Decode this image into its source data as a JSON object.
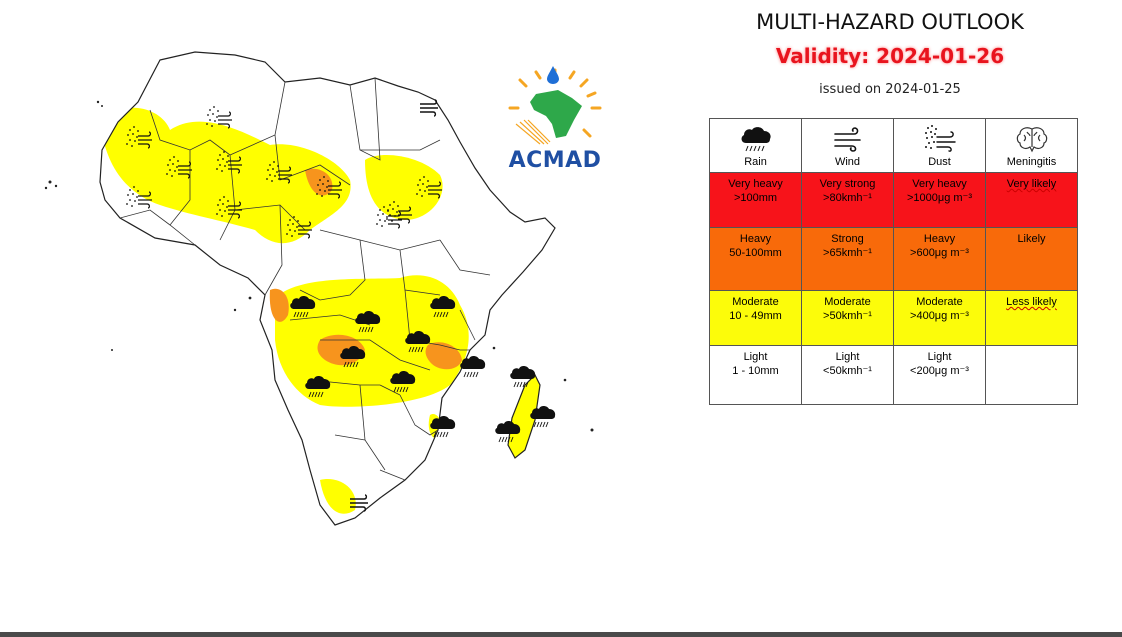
{
  "header": {
    "title": "MULTI-HAZARD OUTLOOK",
    "validity": "Validity: 2024-01-26",
    "issued": "issued on 2024-01-25"
  },
  "logo": {
    "text": "ACMAD"
  },
  "colors": {
    "very_high": "#f7131a",
    "high": "#f86a0a",
    "moderate": "#fcfc0a",
    "light": "#ffffff",
    "map_moderate": "#ffff00",
    "map_high": "#f7941d"
  },
  "legend": {
    "hazards": [
      {
        "name": "Rain",
        "icon": "rain-cloud-icon"
      },
      {
        "name": "Wind",
        "icon": "wind-icon"
      },
      {
        "name": "Dust",
        "icon": "dust-icon"
      },
      {
        "name": "Meningitis",
        "icon": "brain-icon"
      }
    ],
    "rows": [
      {
        "level": "very-high",
        "cells": [
          {
            "line1": "Very heavy",
            "line2": ">100mm"
          },
          {
            "line1": "Very strong",
            "line2": ">80kmh⁻¹"
          },
          {
            "line1": "Very heavy",
            "line2": ">1000μg m⁻³"
          },
          {
            "line1": "Very likely",
            "line2": ""
          }
        ]
      },
      {
        "level": "high",
        "cells": [
          {
            "line1": "Heavy",
            "line2": "50-100mm"
          },
          {
            "line1": "Strong",
            "line2": ">65kmh⁻¹"
          },
          {
            "line1": "Heavy",
            "line2": ">600μg m⁻³"
          },
          {
            "line1": "Likely",
            "line2": ""
          }
        ]
      },
      {
        "level": "moderate",
        "cells": [
          {
            "line1": "Moderate",
            "line2": "10 - 49mm"
          },
          {
            "line1": "Moderate",
            "line2": ">50kmh⁻¹"
          },
          {
            "line1": "Moderate",
            "line2": ">400μg m⁻³"
          },
          {
            "line1": "Less likely",
            "line2": ""
          }
        ]
      },
      {
        "level": "light",
        "cells": [
          {
            "line1": "Light",
            "line2": "1 - 10mm"
          },
          {
            "line1": "Light",
            "line2": "<50kmh⁻¹"
          },
          {
            "line1": "Light",
            "line2": "<200μg m⁻³"
          },
          {
            "line1": "",
            "line2": ""
          }
        ]
      }
    ]
  },
  "map": {
    "hazard_markers": [
      {
        "type": "dust"
      },
      {
        "type": "dust"
      },
      {
        "type": "dust"
      },
      {
        "type": "dust"
      },
      {
        "type": "dust"
      },
      {
        "type": "dust"
      },
      {
        "type": "dust"
      },
      {
        "type": "dust"
      },
      {
        "type": "dust"
      },
      {
        "type": "dust"
      },
      {
        "type": "dust"
      },
      {
        "type": "dust"
      },
      {
        "type": "wind"
      },
      {
        "type": "wind"
      },
      {
        "type": "rain"
      },
      {
        "type": "rain"
      },
      {
        "type": "rain"
      },
      {
        "type": "rain"
      },
      {
        "type": "rain"
      },
      {
        "type": "rain"
      },
      {
        "type": "rain"
      },
      {
        "type": "rain"
      },
      {
        "type": "rain"
      },
      {
        "type": "rain"
      },
      {
        "type": "rain"
      },
      {
        "type": "rain"
      }
    ]
  }
}
